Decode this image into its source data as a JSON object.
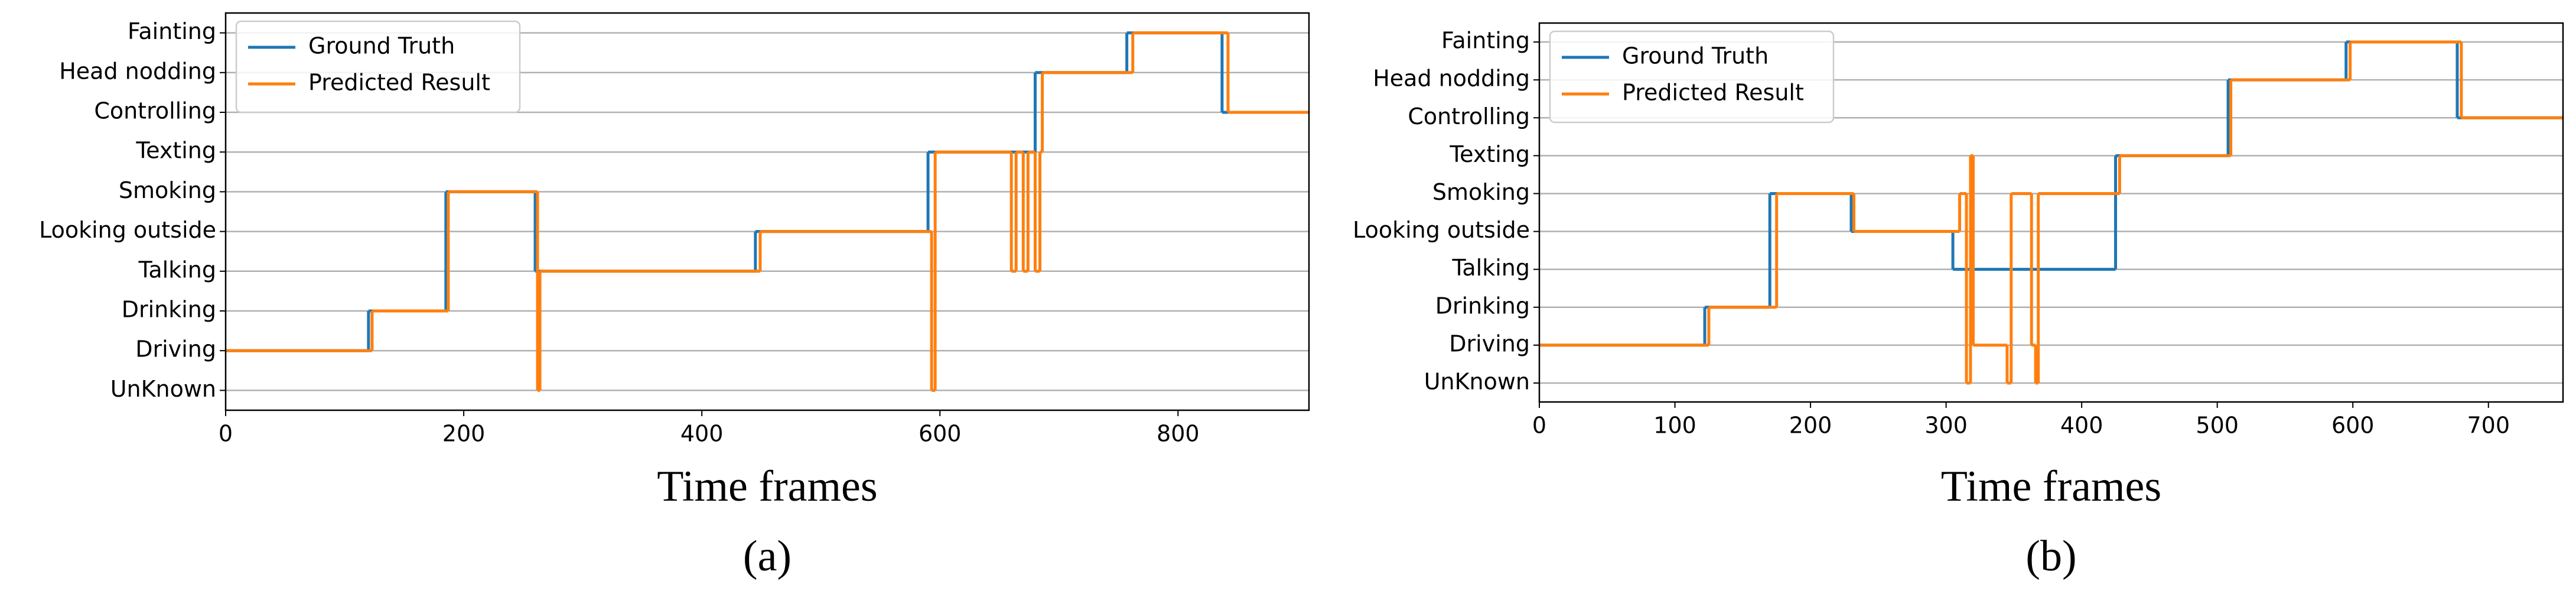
{
  "chart_data": [
    {
      "type": "line",
      "drawstyle": "steps-post",
      "xlabel": "Time frames",
      "caption": "(a)",
      "xlim": [
        0,
        910
      ],
      "xticks": [
        0,
        200,
        400,
        600,
        800
      ],
      "ylim": [
        -0.5,
        9.5
      ],
      "yticks": [
        {
          "value": 0,
          "label": "UnKnown"
        },
        {
          "value": 1,
          "label": "Driving"
        },
        {
          "value": 2,
          "label": "Drinking"
        },
        {
          "value": 3,
          "label": "Talking"
        },
        {
          "value": 4,
          "label": "Looking outside"
        },
        {
          "value": 5,
          "label": "Smoking"
        },
        {
          "value": 6,
          "label": "Texting"
        },
        {
          "value": 7,
          "label": "Controlling"
        },
        {
          "value": 8,
          "label": "Head nodding"
        },
        {
          "value": 9,
          "label": "Fainting"
        }
      ],
      "grid": true,
      "legend": "upper-left",
      "series": [
        {
          "name": "Ground Truth",
          "color": "#1f77b4",
          "x": [
            0,
            120,
            185,
            260,
            445,
            590,
            680,
            757,
            837,
            910
          ],
          "values": [
            1,
            2,
            5,
            3,
            4,
            6,
            8,
            9,
            7,
            7
          ]
        },
        {
          "name": "Predicted Result",
          "color": "#ff7f0e",
          "x": [
            0,
            123,
            187,
            262,
            264,
            449,
            593,
            596,
            660,
            664,
            670,
            674,
            680,
            684,
            686,
            762,
            842,
            910
          ],
          "values": [
            1,
            2,
            5,
            0,
            3,
            4,
            0,
            6,
            3,
            6,
            3,
            6,
            3,
            6,
            8,
            9,
            7,
            7
          ]
        }
      ]
    },
    {
      "type": "line",
      "drawstyle": "steps-post",
      "xlabel": "Time frames",
      "caption": "(b)",
      "xlim": [
        0,
        755
      ],
      "xticks": [
        0,
        100,
        200,
        300,
        400,
        500,
        600,
        700
      ],
      "ylim": [
        -0.5,
        9.5
      ],
      "yticks": [
        {
          "value": 0,
          "label": "UnKnown"
        },
        {
          "value": 1,
          "label": "Driving"
        },
        {
          "value": 2,
          "label": "Drinking"
        },
        {
          "value": 3,
          "label": "Talking"
        },
        {
          "value": 4,
          "label": "Looking outside"
        },
        {
          "value": 5,
          "label": "Smoking"
        },
        {
          "value": 6,
          "label": "Texting"
        },
        {
          "value": 7,
          "label": "Controlling"
        },
        {
          "value": 8,
          "label": "Head nodding"
        },
        {
          "value": 9,
          "label": "Fainting"
        }
      ],
      "grid": true,
      "legend": "upper-left",
      "series": [
        {
          "name": "Ground Truth",
          "color": "#1f77b4",
          "x": [
            0,
            122,
            170,
            230,
            305,
            425,
            508,
            595,
            677,
            755
          ],
          "values": [
            1,
            2,
            5,
            4,
            3,
            6,
            8,
            9,
            7,
            7
          ]
        },
        {
          "name": "Predicted Result",
          "color": "#ff7f0e",
          "x": [
            0,
            125,
            175,
            232,
            310,
            315,
            318,
            320,
            345,
            348,
            363,
            366,
            368,
            428,
            510,
            598,
            680,
            755
          ],
          "values": [
            1,
            2,
            5,
            4,
            5,
            0,
            6,
            1,
            0,
            5,
            1,
            0,
            5,
            6,
            8,
            9,
            7,
            7
          ]
        }
      ]
    }
  ]
}
